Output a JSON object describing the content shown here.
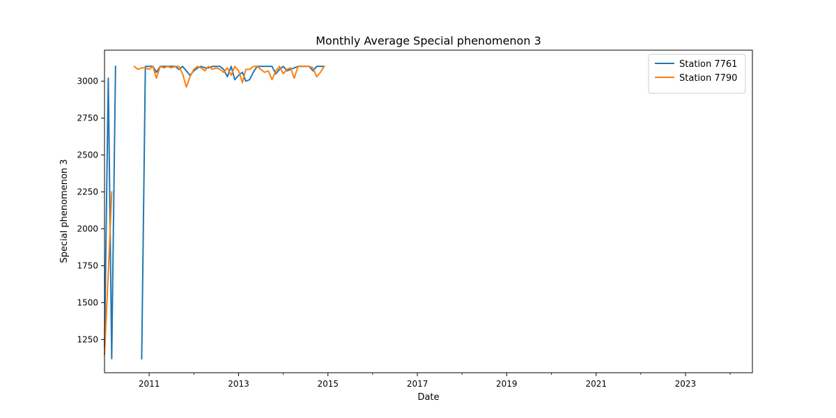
{
  "chart_data": {
    "type": "line",
    "title": "Monthly Average Special phenomenon 3",
    "xlabel": "Date",
    "ylabel": "Special phenomenon 3",
    "xlim": [
      "2010-01-01",
      "2024-07-01"
    ],
    "ylim": [
      1025,
      3210
    ],
    "x_ticks": [
      {
        "date": "2011-01-01",
        "label": "2011"
      },
      {
        "date": "2013-01-01",
        "label": "2013"
      },
      {
        "date": "2015-01-01",
        "label": "2015"
      },
      {
        "date": "2017-01-01",
        "label": "2017"
      },
      {
        "date": "2019-01-01",
        "label": "2019"
      },
      {
        "date": "2021-01-01",
        "label": "2021"
      },
      {
        "date": "2023-01-01",
        "label": "2023"
      }
    ],
    "x_minor_ticks": [
      "2012-01-01",
      "2014-01-01",
      "2016-01-01",
      "2018-01-01",
      "2020-01-01",
      "2022-01-01",
      "2024-01-01"
    ],
    "y_ticks": [
      1250,
      1500,
      1750,
      2000,
      2250,
      2500,
      2750,
      3000
    ],
    "grid": false,
    "legend": "top-right",
    "series": [
      {
        "name": "Station 7761",
        "color": "#1f77b4",
        "points": [
          [
            "2010-01-01",
            1200
          ],
          [
            "2010-02-01",
            3020
          ],
          [
            "2010-03-01",
            1120
          ],
          [
            "2010-04-01",
            3100
          ],
          null,
          [
            "2010-11-01",
            1120
          ],
          [
            "2010-12-01",
            3100
          ],
          [
            "2011-01-01",
            3100
          ],
          [
            "2011-02-01",
            3100
          ],
          [
            "2011-03-01",
            3060
          ],
          [
            "2011-04-01",
            3100
          ],
          [
            "2011-05-01",
            3100
          ],
          [
            "2011-06-01",
            3100
          ],
          [
            "2011-07-01",
            3100
          ],
          [
            "2011-08-01",
            3100
          ],
          [
            "2011-09-01",
            3080
          ],
          [
            "2011-10-01",
            3100
          ],
          [
            "2011-11-01",
            3070
          ],
          [
            "2011-12-01",
            3040
          ],
          [
            "2012-01-01",
            3070
          ],
          [
            "2012-02-01",
            3090
          ],
          [
            "2012-03-01",
            3100
          ],
          [
            "2012-04-01",
            3090
          ],
          [
            "2012-05-01",
            3090
          ],
          [
            "2012-06-01",
            3100
          ],
          [
            "2012-07-01",
            3100
          ],
          [
            "2012-08-01",
            3100
          ],
          [
            "2012-09-01",
            3080
          ],
          [
            "2012-10-01",
            3030
          ],
          [
            "2012-11-01",
            3100
          ],
          [
            "2012-12-01",
            3010
          ],
          [
            "2013-01-01",
            3040
          ],
          [
            "2013-02-01",
            3060
          ],
          [
            "2013-03-01",
            3000
          ],
          [
            "2013-04-01",
            3010
          ],
          [
            "2013-05-01",
            3060
          ],
          [
            "2013-06-01",
            3100
          ],
          [
            "2013-07-01",
            3100
          ],
          [
            "2013-08-01",
            3100
          ],
          [
            "2013-09-01",
            3100
          ],
          [
            "2013-10-01",
            3100
          ],
          [
            "2013-11-01",
            3050
          ],
          [
            "2013-12-01",
            3080
          ],
          [
            "2014-01-01",
            3100
          ],
          [
            "2014-02-01",
            3070
          ],
          [
            "2014-03-01",
            3080
          ],
          [
            "2014-04-01",
            3090
          ],
          [
            "2014-05-01",
            3100
          ],
          [
            "2014-06-01",
            3100
          ],
          [
            "2014-07-01",
            3100
          ],
          [
            "2014-08-01",
            3100
          ],
          [
            "2014-09-01",
            3070
          ],
          [
            "2014-10-01",
            3100
          ],
          [
            "2014-11-01",
            3100
          ],
          [
            "2014-12-01",
            3100
          ]
        ]
      },
      {
        "name": "Station 7790",
        "color": "#ff7f0e",
        "points": [
          [
            "2010-01-01",
            1150
          ],
          [
            "2010-02-01",
            1700
          ],
          [
            "2010-03-01",
            2250
          ],
          null,
          [
            "2010-09-01",
            3100
          ],
          [
            "2010-10-01",
            3080
          ],
          [
            "2010-11-01",
            3090
          ],
          [
            "2010-12-01",
            3090
          ],
          [
            "2011-01-01",
            3080
          ],
          [
            "2011-02-01",
            3100
          ],
          [
            "2011-03-01",
            3020
          ],
          [
            "2011-04-01",
            3100
          ],
          [
            "2011-05-01",
            3090
          ],
          [
            "2011-06-01",
            3100
          ],
          [
            "2011-07-01",
            3090
          ],
          [
            "2011-08-01",
            3100
          ],
          [
            "2011-09-01",
            3100
          ],
          [
            "2011-10-01",
            3050
          ],
          [
            "2011-11-01",
            2960
          ],
          [
            "2011-12-01",
            3030
          ],
          [
            "2012-01-01",
            3080
          ],
          [
            "2012-02-01",
            3100
          ],
          [
            "2012-03-01",
            3090
          ],
          [
            "2012-04-01",
            3070
          ],
          [
            "2012-05-01",
            3100
          ],
          [
            "2012-06-01",
            3080
          ],
          [
            "2012-07-01",
            3090
          ],
          [
            "2012-08-01",
            3080
          ],
          [
            "2012-09-01",
            3060
          ],
          [
            "2012-10-01",
            3090
          ],
          [
            "2012-11-01",
            3040
          ],
          [
            "2012-12-01",
            3100
          ],
          [
            "2013-01-01",
            3070
          ],
          [
            "2013-02-01",
            2990
          ],
          [
            "2013-03-01",
            3080
          ],
          [
            "2013-04-01",
            3080
          ],
          [
            "2013-05-01",
            3100
          ],
          [
            "2013-06-01",
            3100
          ],
          [
            "2013-07-01",
            3080
          ],
          [
            "2013-08-01",
            3060
          ],
          [
            "2013-09-01",
            3070
          ],
          [
            "2013-10-01",
            3010
          ],
          [
            "2013-11-01",
            3070
          ],
          [
            "2013-12-01",
            3100
          ],
          [
            "2014-01-01",
            3050
          ],
          [
            "2014-02-01",
            3080
          ],
          [
            "2014-03-01",
            3090
          ],
          [
            "2014-04-01",
            3020
          ],
          [
            "2014-05-01",
            3100
          ],
          [
            "2014-06-01",
            3100
          ],
          [
            "2014-07-01",
            3100
          ],
          [
            "2014-08-01",
            3100
          ],
          [
            "2014-09-01",
            3090
          ],
          [
            "2014-10-01",
            3030
          ],
          [
            "2014-11-01",
            3060
          ],
          [
            "2014-12-01",
            3100
          ]
        ]
      }
    ]
  }
}
